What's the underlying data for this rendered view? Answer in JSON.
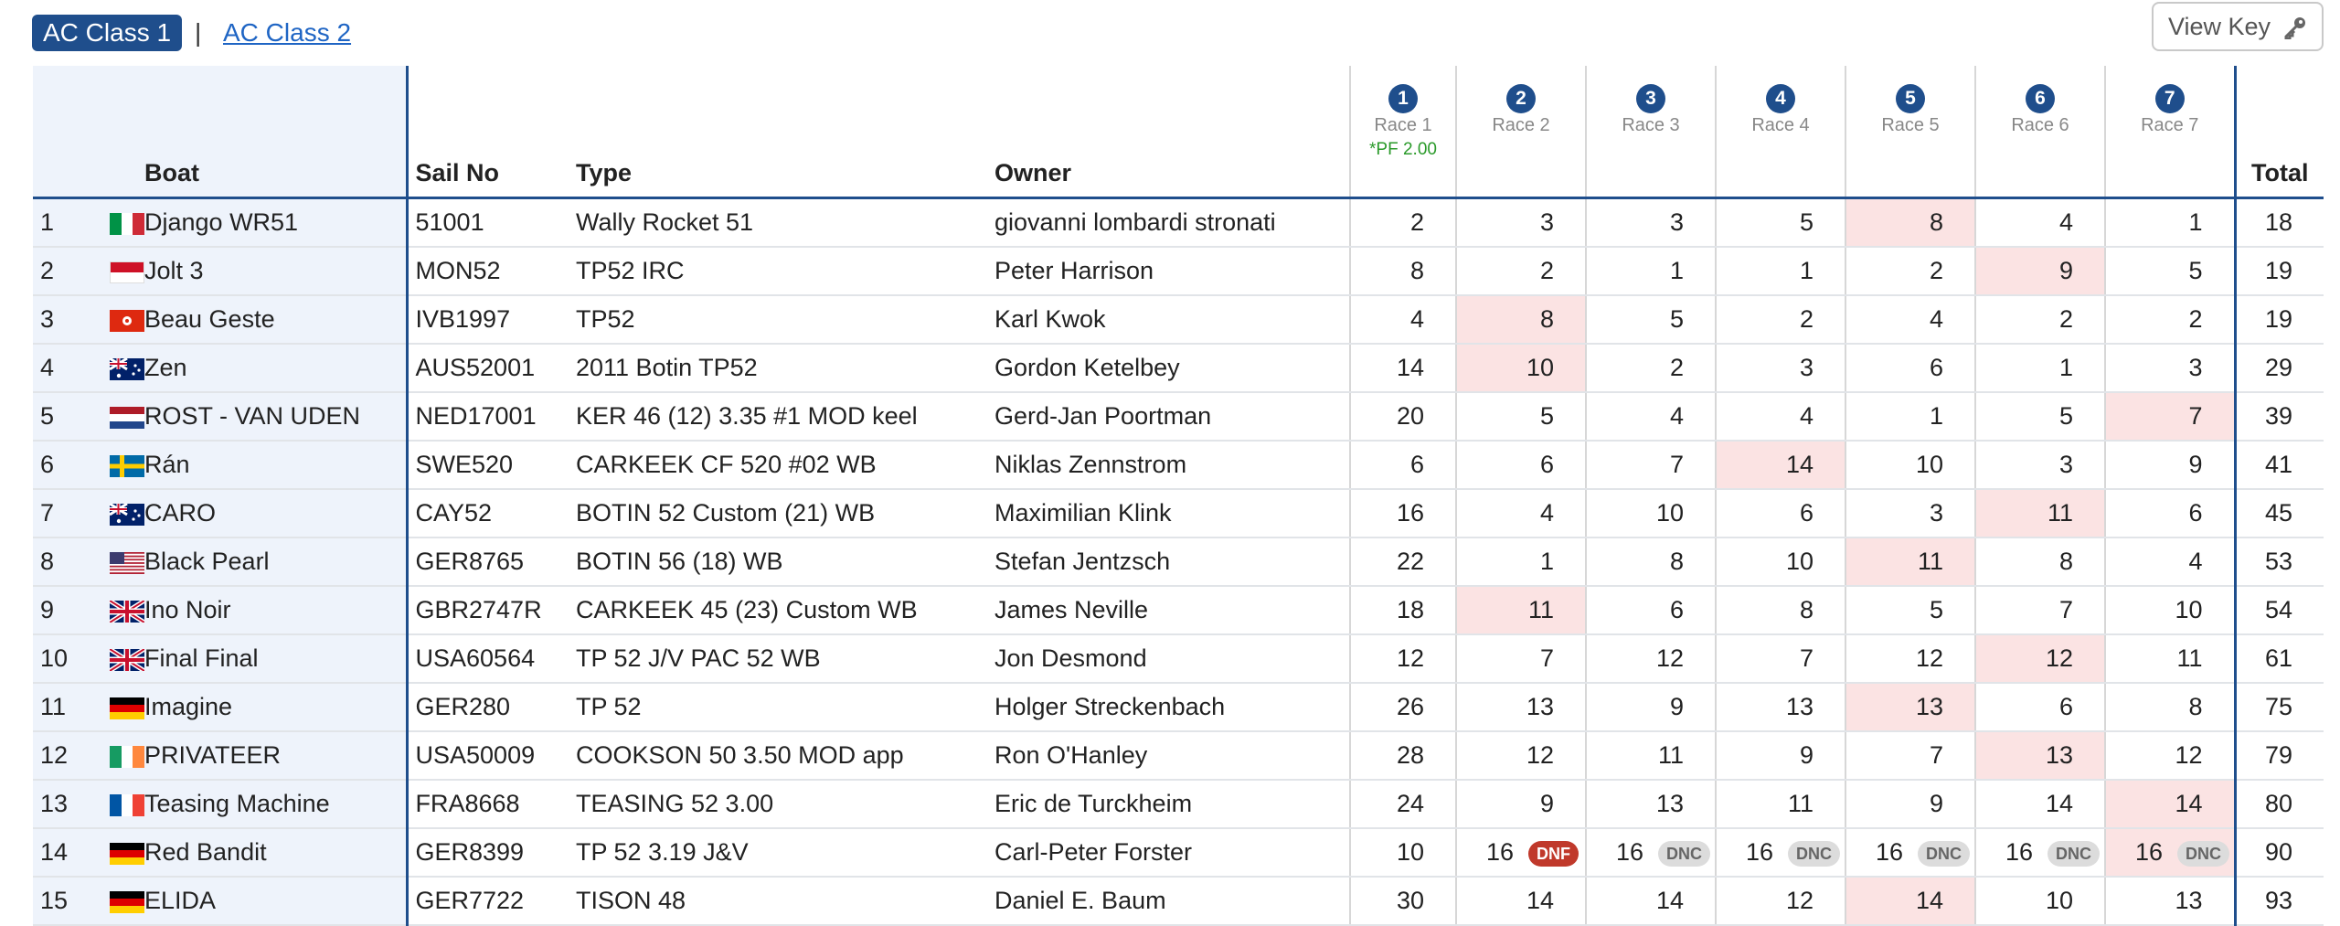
{
  "tabs": {
    "active": "AC Class 1",
    "separator": "|",
    "other": "AC Class 2"
  },
  "view_key": {
    "label": "View Key",
    "icon": "key-icon"
  },
  "headers": {
    "boat": "Boat",
    "sail_no": "Sail No",
    "type": "Type",
    "owner": "Owner",
    "total": "Total"
  },
  "races": [
    {
      "num": "1",
      "label": "Race 1",
      "factor": "*PF 2.00"
    },
    {
      "num": "2",
      "label": "Race 2",
      "factor": ""
    },
    {
      "num": "3",
      "label": "Race 3",
      "factor": ""
    },
    {
      "num": "4",
      "label": "Race 4",
      "factor": ""
    },
    {
      "num": "5",
      "label": "Race 5",
      "factor": ""
    },
    {
      "num": "6",
      "label": "Race 6",
      "factor": ""
    },
    {
      "num": "7",
      "label": "Race 7",
      "factor": ""
    }
  ],
  "colors": {
    "accent": "#1f4e8c",
    "discard": "#fbe3e3",
    "dnf": "#c0392b",
    "dnc": "#dcdcdc"
  },
  "rows": [
    {
      "pos": "1",
      "flag": "IT",
      "boat": "Django WR51",
      "sail": "51001",
      "type": "Wally Rocket 51",
      "owner": "giovanni lombardi stronati",
      "races": [
        {
          "v": "2"
        },
        {
          "v": "3"
        },
        {
          "v": "3"
        },
        {
          "v": "5"
        },
        {
          "v": "8",
          "d": true
        },
        {
          "v": "4"
        },
        {
          "v": "1"
        }
      ],
      "total": "18"
    },
    {
      "pos": "2",
      "flag": "MC",
      "boat": "Jolt 3",
      "sail": "MON52",
      "type": "TP52 IRC",
      "owner": "Peter Harrison",
      "races": [
        {
          "v": "8"
        },
        {
          "v": "2"
        },
        {
          "v": "1"
        },
        {
          "v": "1"
        },
        {
          "v": "2"
        },
        {
          "v": "9",
          "d": true
        },
        {
          "v": "5"
        }
      ],
      "total": "19"
    },
    {
      "pos": "3",
      "flag": "HK",
      "boat": "Beau Geste",
      "sail": "IVB1997",
      "type": "TP52",
      "owner": "Karl Kwok",
      "races": [
        {
          "v": "4"
        },
        {
          "v": "8",
          "d": true
        },
        {
          "v": "5"
        },
        {
          "v": "2"
        },
        {
          "v": "4"
        },
        {
          "v": "2"
        },
        {
          "v": "2"
        }
      ],
      "total": "19"
    },
    {
      "pos": "4",
      "flag": "AU",
      "boat": "Zen",
      "sail": "AUS52001",
      "type": "2011 Botin TP52",
      "owner": "Gordon Ketelbey",
      "races": [
        {
          "v": "14"
        },
        {
          "v": "10",
          "d": true
        },
        {
          "v": "2"
        },
        {
          "v": "3"
        },
        {
          "v": "6"
        },
        {
          "v": "1"
        },
        {
          "v": "3"
        }
      ],
      "total": "29"
    },
    {
      "pos": "5",
      "flag": "NL",
      "boat": "ROST - VAN UDEN",
      "sail": "NED17001",
      "type": "KER 46 (12) 3.35 #1 MOD keel",
      "owner": "Gerd-Jan Poortman",
      "races": [
        {
          "v": "20"
        },
        {
          "v": "5"
        },
        {
          "v": "4"
        },
        {
          "v": "4"
        },
        {
          "v": "1"
        },
        {
          "v": "5"
        },
        {
          "v": "7",
          "d": true
        }
      ],
      "total": "39"
    },
    {
      "pos": "6",
      "flag": "SE",
      "boat": "Rán",
      "sail": "SWE520",
      "type": "CARKEEK CF 520 #02 WB",
      "owner": "Niklas Zennstrom",
      "races": [
        {
          "v": "6"
        },
        {
          "v": "6"
        },
        {
          "v": "7"
        },
        {
          "v": "14",
          "d": true
        },
        {
          "v": "10"
        },
        {
          "v": "3"
        },
        {
          "v": "9"
        }
      ],
      "total": "41"
    },
    {
      "pos": "7",
      "flag": "KY",
      "boat": "CARO",
      "sail": "CAY52",
      "type": "BOTIN 52 Custom (21) WB",
      "owner": "Maximilian Klink",
      "races": [
        {
          "v": "16"
        },
        {
          "v": "4"
        },
        {
          "v": "10"
        },
        {
          "v": "6"
        },
        {
          "v": "3"
        },
        {
          "v": "11",
          "d": true
        },
        {
          "v": "6"
        }
      ],
      "total": "45"
    },
    {
      "pos": "8",
      "flag": "US",
      "boat": "Black Pearl",
      "sail": "GER8765",
      "type": "BOTIN 56 (18) WB",
      "owner": "Stefan Jentzsch",
      "races": [
        {
          "v": "22"
        },
        {
          "v": "1"
        },
        {
          "v": "8"
        },
        {
          "v": "10"
        },
        {
          "v": "11",
          "d": true
        },
        {
          "v": "8"
        },
        {
          "v": "4"
        }
      ],
      "total": "53"
    },
    {
      "pos": "9",
      "flag": "GB",
      "boat": "Ino Noir",
      "sail": "GBR2747R",
      "type": "CARKEEK 45 (23) Custom WB",
      "owner": "James Neville",
      "races": [
        {
          "v": "18"
        },
        {
          "v": "11",
          "d": true
        },
        {
          "v": "6"
        },
        {
          "v": "8"
        },
        {
          "v": "5"
        },
        {
          "v": "7"
        },
        {
          "v": "10"
        }
      ],
      "total": "54"
    },
    {
      "pos": "10",
      "flag": "GB",
      "boat": "Final Final",
      "sail": "USA60564",
      "type": "TP 52 J/V PAC 52 WB",
      "owner": "Jon Desmond",
      "races": [
        {
          "v": "12"
        },
        {
          "v": "7"
        },
        {
          "v": "12"
        },
        {
          "v": "7"
        },
        {
          "v": "12"
        },
        {
          "v": "12",
          "d": true
        },
        {
          "v": "11"
        }
      ],
      "total": "61"
    },
    {
      "pos": "11",
      "flag": "DE",
      "boat": "Imagine",
      "sail": "GER280",
      "type": "TP 52",
      "owner": "Holger Streckenbach",
      "races": [
        {
          "v": "26"
        },
        {
          "v": "13"
        },
        {
          "v": "9"
        },
        {
          "v": "13"
        },
        {
          "v": "13",
          "d": true
        },
        {
          "v": "6"
        },
        {
          "v": "8"
        }
      ],
      "total": "75"
    },
    {
      "pos": "12",
      "flag": "IE",
      "boat": "PRIVATEER",
      "sail": "USA50009",
      "type": "COOKSON 50 3.50 MOD app",
      "owner": "Ron O'Hanley",
      "races": [
        {
          "v": "28"
        },
        {
          "v": "12"
        },
        {
          "v": "11"
        },
        {
          "v": "9"
        },
        {
          "v": "7"
        },
        {
          "v": "13",
          "d": true
        },
        {
          "v": "12"
        }
      ],
      "total": "79"
    },
    {
      "pos": "13",
      "flag": "FR",
      "boat": "Teasing Machine",
      "sail": "FRA8668",
      "type": "TEASING 52 3.00",
      "owner": "Eric de Turckheim",
      "races": [
        {
          "v": "24"
        },
        {
          "v": "9"
        },
        {
          "v": "13"
        },
        {
          "v": "11"
        },
        {
          "v": "9"
        },
        {
          "v": "14"
        },
        {
          "v": "14",
          "d": true
        }
      ],
      "total": "80"
    },
    {
      "pos": "14",
      "flag": "DE",
      "boat": "Red Bandit",
      "sail": "GER8399",
      "type": "TP 52 3.19 J&V",
      "owner": "Carl-Peter Forster",
      "races": [
        {
          "v": "10"
        },
        {
          "v": "16",
          "tag": "DNF"
        },
        {
          "v": "16",
          "tag": "DNC"
        },
        {
          "v": "16",
          "tag": "DNC"
        },
        {
          "v": "16",
          "tag": "DNC"
        },
        {
          "v": "16",
          "tag": "DNC"
        },
        {
          "v": "16",
          "tag": "DNC",
          "d": true
        }
      ],
      "total": "90"
    },
    {
      "pos": "15",
      "flag": "DE",
      "boat": "ELIDA",
      "sail": "GER7722",
      "type": "TISON 48",
      "owner": "Daniel E. Baum",
      "races": [
        {
          "v": "30"
        },
        {
          "v": "14"
        },
        {
          "v": "14"
        },
        {
          "v": "12"
        },
        {
          "v": "14",
          "d": true
        },
        {
          "v": "10"
        },
        {
          "v": "13"
        }
      ],
      "total": "93"
    }
  ]
}
